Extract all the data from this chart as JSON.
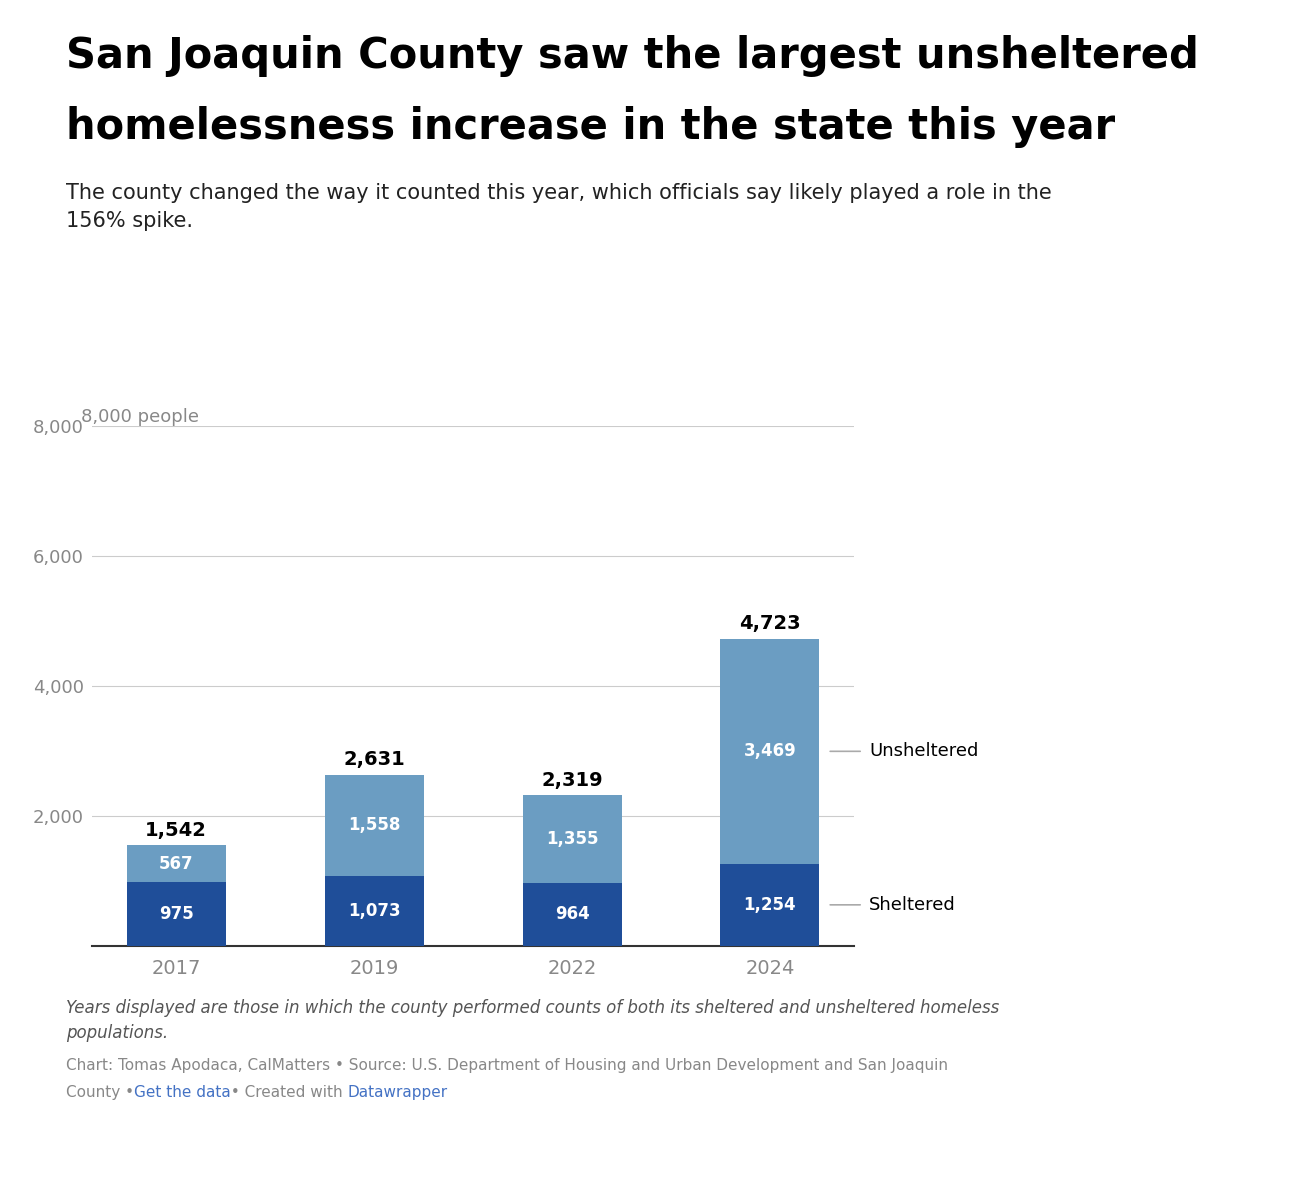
{
  "title_line1": "San Joaquin County saw the largest unsheltered",
  "title_line2": "homelessness increase in the state this year",
  "subtitle": "The county changed the way it counted this year, which officials say likely played a role in the\n156% spike.",
  "years": [
    "2017",
    "2019",
    "2022",
    "2024"
  ],
  "sheltered": [
    975,
    1073,
    964,
    1254
  ],
  "unsheltered": [
    567,
    1558,
    1355,
    3469
  ],
  "totals": [
    1542,
    2631,
    2319,
    4723
  ],
  "color_sheltered": "#1f4e99",
  "color_unsheltered": "#6b9dc2",
  "ylim": [
    0,
    8000
  ],
  "yticks": [
    2000,
    4000,
    6000,
    8000
  ],
  "y_top_label": "8,000 people",
  "footnote_italic": "Years displayed are those in which the county performed counts of both its sheltered and unsheltered homeless\npopulations.",
  "footnote_source": "Chart: Tomas Apodaca, CalMatters • Source: U.S. Department of Housing and Urban Development and San Joaquin\nCounty • ",
  "footnote_link1": "Get the data",
  "footnote_mid": " • Created with ",
  "footnote_link2": "Datawrapper",
  "link_color": "#4472c4",
  "background_color": "#ffffff",
  "title_fontsize": 30,
  "subtitle_fontsize": 15,
  "bar_width": 0.5,
  "grid_color": "#cccccc",
  "tick_label_color": "#888888",
  "label_line_color": "#aaaaaa"
}
